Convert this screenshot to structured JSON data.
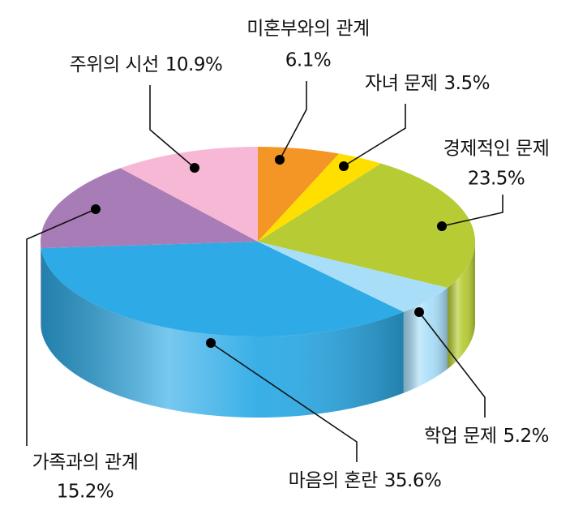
{
  "chart_data": {
    "type": "pie",
    "categories": [
      "미혼부와의 관계",
      "자녀 문제",
      "경제적인 문제",
      "학업 문제",
      "마음의 혼란",
      "가족과의 관계",
      "주위의 시선"
    ],
    "values": [
      6.1,
      3.5,
      23.5,
      5.2,
      35.6,
      15.2,
      10.9
    ],
    "value_labels": [
      "6.1%",
      "3.5%",
      "23.5%",
      "5.2%",
      "35.6%",
      "15.2%",
      "10.9%"
    ],
    "colors": [
      "#f39625",
      "#ffdf00",
      "#b6cb34",
      "#a9def8",
      "#2eabe6",
      "#a87cb6",
      "#f6b8d5"
    ]
  }
}
